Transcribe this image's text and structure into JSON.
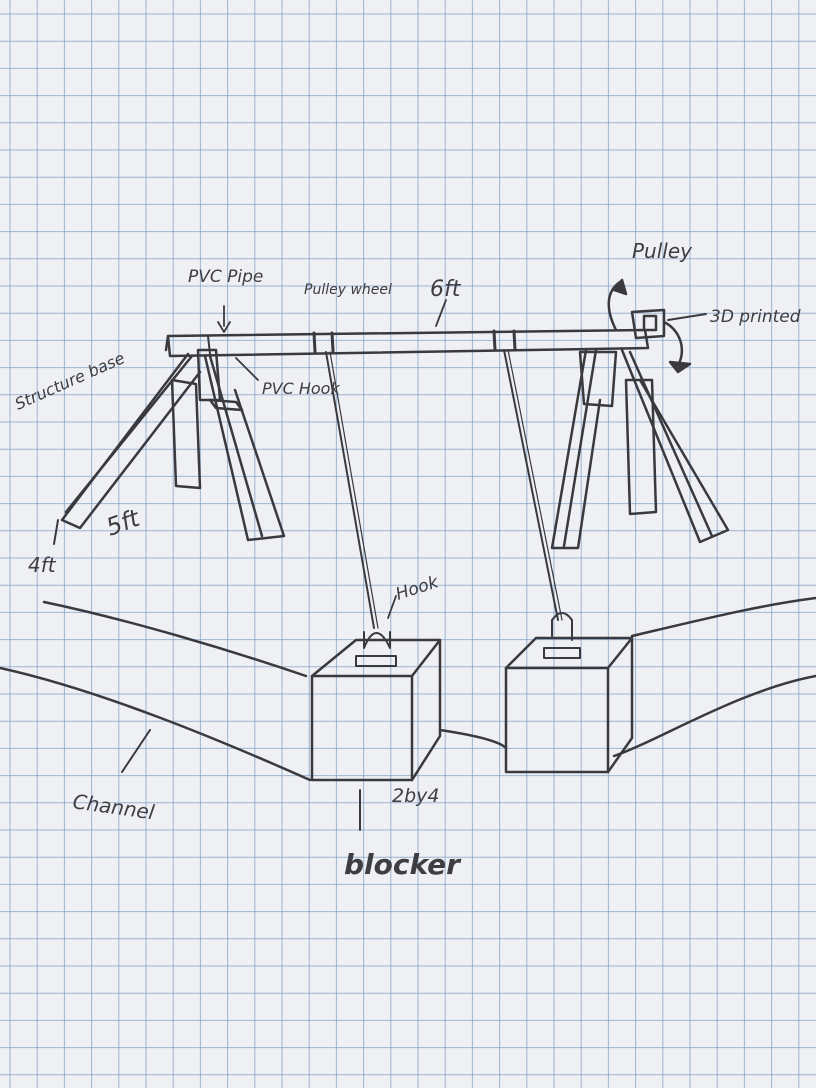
{
  "paper": {
    "grid_color": "#7b9cc6",
    "background": "#eef0f3",
    "pencil_color": "#3a3a3e"
  },
  "labels": {
    "pvc_pipe": "PVC Pipe",
    "pulley_wheel": "Pulley wheel",
    "beam_length": "6ft",
    "pulley": "Pulley",
    "three_d_printed": "3D printed",
    "structure_base": "Structure base",
    "pvc_hook": "PVC Hook",
    "leg_length": "5ft",
    "base_width": "4ft",
    "hook": "Hook",
    "lumber_size": "2by4",
    "channel": "Channel",
    "blocker": "blocker"
  }
}
